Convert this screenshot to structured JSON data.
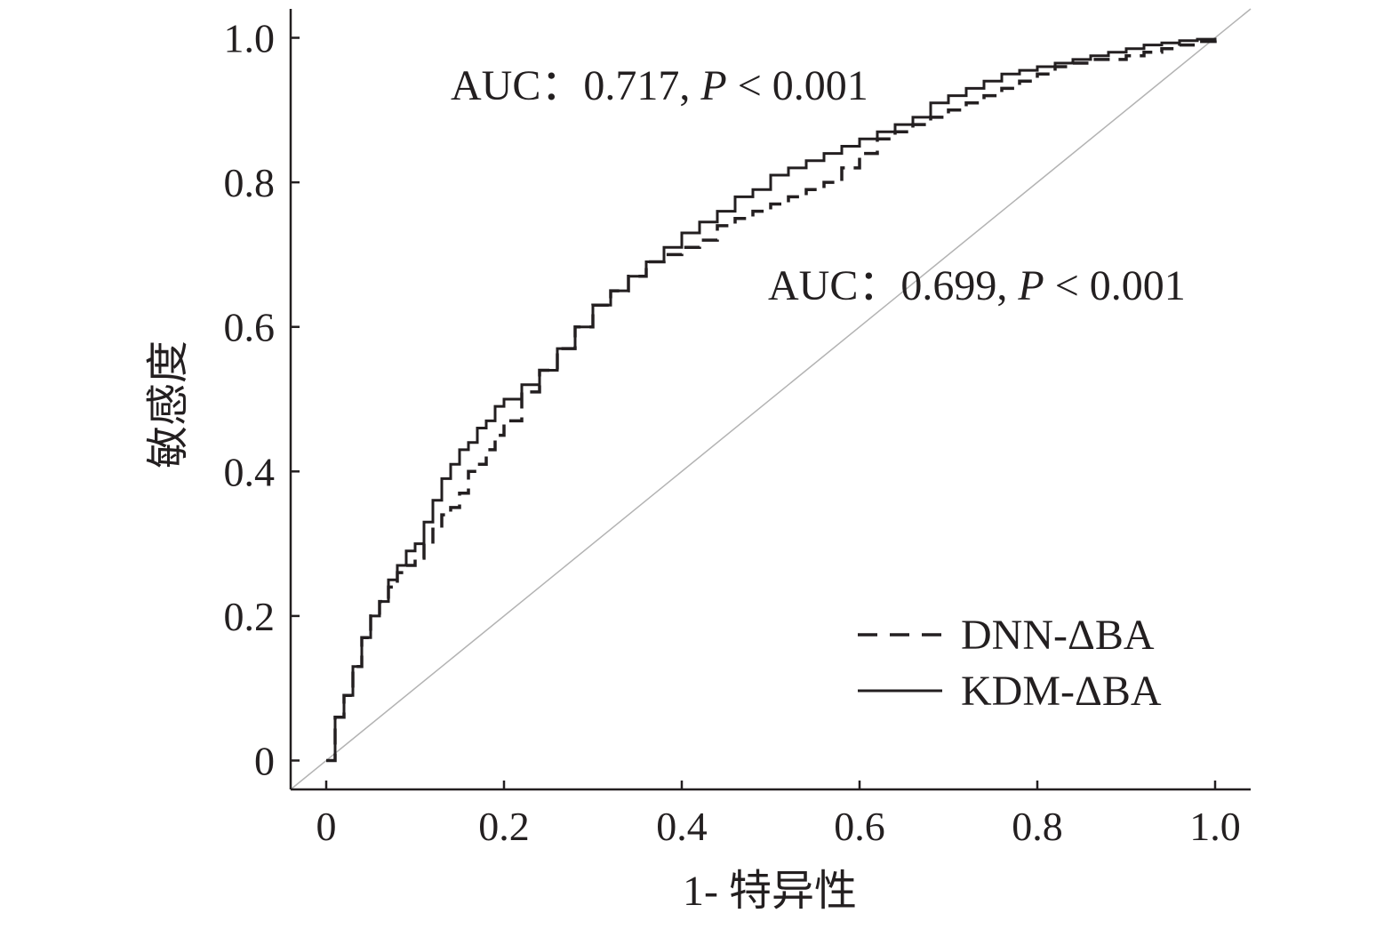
{
  "chart_data": {
    "type": "line",
    "xlabel": "1- 特异性",
    "ylabel": "敏感度",
    "xlim": [
      -0.04,
      1.04
    ],
    "ylim": [
      -0.04,
      1.04
    ],
    "x_ticks": [
      0,
      0.2,
      0.4,
      0.6,
      0.8,
      1.0
    ],
    "x_tick_labels": [
      "0",
      "0.2",
      "0.4",
      "0.6",
      "0.8",
      "1.0"
    ],
    "y_ticks": [
      0,
      0.2,
      0.4,
      0.6,
      0.8,
      1.0
    ],
    "y_tick_labels": [
      "0",
      "0.2",
      "0.4",
      "0.6",
      "0.8",
      "1.0"
    ],
    "grid": false,
    "legend_position": "bottom-right",
    "reference_line": {
      "x": [
        0,
        1
      ],
      "y": [
        0,
        1
      ],
      "color": "#b3b3b3"
    },
    "annotations": [
      {
        "text_pre": "AUC",
        "sep": "：",
        "value": "0.717",
        "comma": ", ",
        "p_symbol": "P",
        "rest": " < 0.001",
        "x": 0.14,
        "y": 0.93
      },
      {
        "text_pre": "AUC",
        "sep": "：",
        "value": "0.699",
        "comma": ", ",
        "p_symbol": "P",
        "rest": " < 0.001",
        "x": 0.5,
        "y": 0.655
      }
    ],
    "series": [
      {
        "name": "DNN-ΔBA",
        "style": "dashed",
        "color": "#231f20",
        "x": [
          0,
          0.01,
          0.02,
          0.03,
          0.04,
          0.05,
          0.06,
          0.07,
          0.08,
          0.09,
          0.1,
          0.11,
          0.12,
          0.13,
          0.14,
          0.15,
          0.16,
          0.17,
          0.18,
          0.19,
          0.2,
          0.22,
          0.24,
          0.26,
          0.28,
          0.3,
          0.32,
          0.34,
          0.36,
          0.38,
          0.4,
          0.42,
          0.44,
          0.46,
          0.48,
          0.5,
          0.52,
          0.54,
          0.56,
          0.58,
          0.6,
          0.62,
          0.64,
          0.66,
          0.68,
          0.7,
          0.72,
          0.74,
          0.76,
          0.78,
          0.8,
          0.82,
          0.84,
          0.86,
          0.88,
          0.9,
          0.92,
          0.94,
          0.96,
          0.98,
          1.0
        ],
        "y": [
          0,
          0.06,
          0.09,
          0.13,
          0.17,
          0.2,
          0.22,
          0.24,
          0.26,
          0.27,
          0.28,
          0.3,
          0.32,
          0.34,
          0.35,
          0.37,
          0.4,
          0.41,
          0.43,
          0.45,
          0.47,
          0.51,
          0.54,
          0.57,
          0.6,
          0.63,
          0.65,
          0.67,
          0.69,
          0.7,
          0.71,
          0.72,
          0.74,
          0.75,
          0.76,
          0.77,
          0.78,
          0.79,
          0.8,
          0.82,
          0.84,
          0.86,
          0.87,
          0.88,
          0.89,
          0.9,
          0.91,
          0.92,
          0.93,
          0.94,
          0.95,
          0.96,
          0.965,
          0.97,
          0.97,
          0.975,
          0.98,
          0.985,
          0.99,
          0.995,
          1.0
        ]
      },
      {
        "name": "KDM-ΔBA",
        "style": "solid",
        "color": "#231f20",
        "x": [
          0,
          0.01,
          0.02,
          0.03,
          0.04,
          0.05,
          0.06,
          0.07,
          0.08,
          0.09,
          0.1,
          0.11,
          0.12,
          0.13,
          0.14,
          0.15,
          0.16,
          0.17,
          0.18,
          0.19,
          0.2,
          0.22,
          0.24,
          0.26,
          0.28,
          0.3,
          0.32,
          0.34,
          0.36,
          0.38,
          0.4,
          0.42,
          0.44,
          0.46,
          0.48,
          0.5,
          0.52,
          0.54,
          0.56,
          0.58,
          0.6,
          0.62,
          0.64,
          0.66,
          0.68,
          0.7,
          0.72,
          0.74,
          0.76,
          0.78,
          0.8,
          0.82,
          0.84,
          0.86,
          0.88,
          0.9,
          0.92,
          0.94,
          0.96,
          0.98,
          1.0
        ],
        "y": [
          0,
          0.06,
          0.09,
          0.13,
          0.17,
          0.2,
          0.22,
          0.25,
          0.27,
          0.29,
          0.3,
          0.33,
          0.36,
          0.39,
          0.41,
          0.43,
          0.44,
          0.46,
          0.47,
          0.49,
          0.5,
          0.52,
          0.54,
          0.57,
          0.6,
          0.63,
          0.65,
          0.67,
          0.69,
          0.71,
          0.73,
          0.745,
          0.76,
          0.78,
          0.79,
          0.81,
          0.82,
          0.83,
          0.84,
          0.85,
          0.86,
          0.87,
          0.88,
          0.89,
          0.91,
          0.92,
          0.93,
          0.94,
          0.95,
          0.955,
          0.96,
          0.965,
          0.97,
          0.975,
          0.98,
          0.985,
          0.99,
          0.993,
          0.996,
          0.998,
          1.0
        ]
      }
    ]
  }
}
